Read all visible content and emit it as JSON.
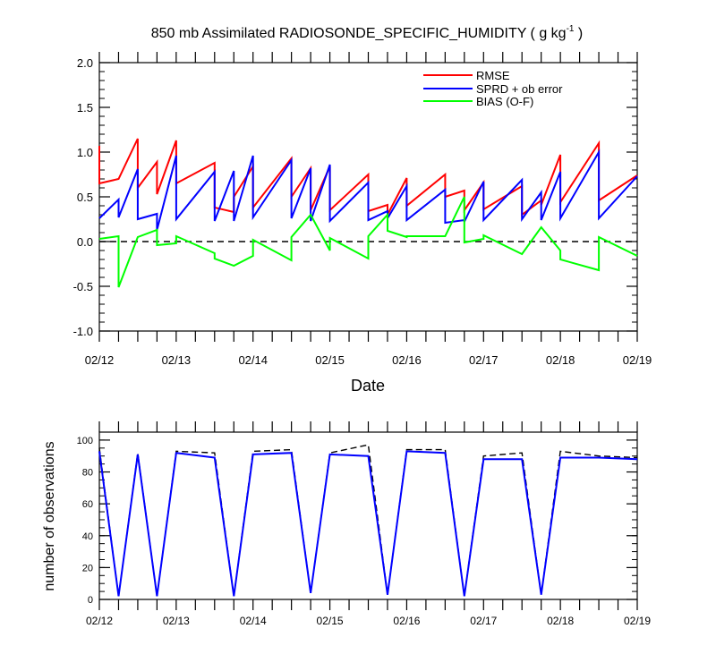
{
  "title_main": "850 mb Assimilated RADIOSONDE_SPECIFIC_HUMIDITY ( g kg",
  "title_sup": "-1",
  "title_close": " )",
  "x_ticks": [
    "02/12",
    "02/13",
    "02/14",
    "02/15",
    "02/16",
    "02/17",
    "02/18",
    "02/19"
  ],
  "colors": {
    "rmse": "#ff0000",
    "sprd": "#0000ff",
    "bias": "#00ff00",
    "obs_possible": "#000000",
    "obs_used": "#0000ff"
  },
  "chart_data": [
    {
      "type": "line",
      "title": "850 mb Assimilated RADIOSONDE_SPECIFIC_HUMIDITY ( g kg-1 )",
      "xlabel": "Date",
      "ylabel": "",
      "xlim": [
        0,
        7
      ],
      "ylim": [
        -1.0,
        2.0
      ],
      "y_ticks": [
        "-1.0",
        "-0.5",
        "0.0",
        "0.5",
        "1.0",
        "1.5",
        "2.0"
      ],
      "x_ticks": [
        "02/12",
        "02/13",
        "02/14",
        "02/15",
        "02/16",
        "02/17",
        "02/18",
        "02/19"
      ],
      "zero_line": "dashed",
      "legend_position": "top-right",
      "series": [
        {
          "name": "RMSE",
          "color": "#ff0000",
          "x": [
            0.0,
            0.0,
            0.25,
            0.5,
            0.5,
            0.75,
            0.75,
            1.0,
            1.0,
            1.5,
            1.5,
            1.75,
            1.75,
            2.0,
            2.0,
            2.5,
            2.5,
            2.75,
            2.75,
            3.0,
            3.0,
            3.5,
            3.5,
            3.75,
            3.75,
            4.0,
            4.0,
            4.5,
            4.5,
            4.75,
            4.75,
            5.0,
            5.0,
            5.5,
            5.5,
            5.75,
            5.75,
            6.0,
            6.0,
            6.5,
            6.5,
            7.0
          ],
          "values": [
            1.07,
            0.65,
            0.7,
            1.15,
            0.6,
            0.89,
            0.53,
            1.13,
            0.65,
            0.88,
            0.38,
            0.33,
            0.5,
            0.84,
            0.38,
            0.93,
            0.5,
            0.82,
            0.35,
            0.84,
            0.35,
            0.75,
            0.34,
            0.41,
            0.3,
            0.71,
            0.4,
            0.75,
            0.5,
            0.57,
            0.35,
            0.66,
            0.36,
            0.62,
            0.3,
            0.46,
            0.41,
            0.97,
            0.44,
            1.1,
            0.46,
            0.74
          ]
        },
        {
          "name": "SPRD + ob error",
          "color": "#0000ff",
          "x": [
            0.0,
            0.25,
            0.25,
            0.5,
            0.5,
            0.75,
            0.75,
            1.0,
            1.0,
            1.5,
            1.5,
            1.75,
            1.75,
            2.0,
            2.0,
            2.5,
            2.5,
            2.75,
            2.75,
            3.0,
            3.0,
            3.5,
            3.5,
            3.75,
            3.75,
            4.0,
            4.0,
            4.5,
            4.5,
            4.75,
            4.75,
            5.0,
            5.0,
            5.5,
            5.5,
            5.75,
            5.75,
            6.0,
            6.0,
            6.5,
            6.5,
            7.0
          ],
          "values": [
            0.26,
            0.47,
            0.27,
            0.81,
            0.25,
            0.31,
            0.13,
            0.96,
            0.25,
            0.78,
            0.23,
            0.79,
            0.23,
            0.96,
            0.27,
            0.91,
            0.26,
            0.82,
            0.23,
            0.86,
            0.23,
            0.66,
            0.24,
            0.34,
            0.26,
            0.62,
            0.24,
            0.58,
            0.21,
            0.24,
            0.22,
            0.67,
            0.24,
            0.69,
            0.25,
            0.55,
            0.24,
            0.78,
            0.26,
            1.0,
            0.26,
            0.73
          ]
        },
        {
          "name": "BIAS (O-F)",
          "color": "#00ff00",
          "x": [
            0.0,
            0.25,
            0.25,
            0.5,
            0.75,
            0.75,
            1.0,
            1.0,
            1.5,
            1.5,
            1.75,
            2.0,
            2.0,
            2.5,
            2.5,
            2.75,
            3.0,
            3.0,
            3.5,
            3.5,
            3.75,
            3.75,
            4.0,
            4.0,
            4.5,
            4.75,
            4.75,
            5.0,
            5.0,
            5.5,
            5.75,
            6.0,
            6.0,
            6.5,
            6.5,
            7.0
          ],
          "values": [
            0.03,
            0.06,
            -0.51,
            0.05,
            0.13,
            -0.04,
            -0.02,
            0.06,
            -0.13,
            -0.19,
            -0.27,
            -0.16,
            0.02,
            -0.21,
            0.05,
            0.3,
            -0.1,
            0.04,
            -0.19,
            0.06,
            0.3,
            0.12,
            0.05,
            0.06,
            0.06,
            0.5,
            -0.01,
            0.03,
            0.07,
            -0.14,
            0.16,
            -0.1,
            -0.2,
            -0.32,
            0.05,
            -0.16
          ]
        }
      ]
    },
    {
      "type": "line",
      "xlabel": "",
      "ylabel": "number of observations",
      "xlim": [
        0,
        7
      ],
      "ylim": [
        0,
        105
      ],
      "y_ticks": [
        "0",
        "20",
        "40",
        "60",
        "80",
        "100"
      ],
      "x_ticks": [
        "02/12",
        "02/13",
        "02/14",
        "02/15",
        "02/16",
        "02/17",
        "02/18",
        "02/19"
      ],
      "series": [
        {
          "name": "possible",
          "style": "dashed",
          "color": "#000000",
          "x": [
            0.0,
            0.25,
            0.5,
            0.75,
            1.0,
            1.5,
            1.75,
            2.0,
            2.5,
            2.75,
            3.0,
            3.5,
            3.75,
            4.0,
            4.5,
            4.75,
            5.0,
            5.5,
            5.75,
            6.0,
            6.5,
            7.0
          ],
          "values": [
            95,
            2,
            92,
            2,
            93,
            92,
            2,
            93,
            94,
            4,
            92,
            97,
            3,
            94,
            94,
            2,
            90,
            92,
            3,
            93,
            90,
            89
          ]
        },
        {
          "name": "used",
          "style": "solid",
          "color": "#0000ff",
          "x": [
            0.0,
            0.25,
            0.5,
            0.75,
            1.0,
            1.5,
            1.75,
            2.0,
            2.5,
            2.75,
            3.0,
            3.5,
            3.75,
            4.0,
            4.5,
            4.75,
            5.0,
            5.5,
            5.75,
            6.0,
            6.5,
            7.0
          ],
          "values": [
            93,
            2,
            91,
            2,
            92,
            89,
            2,
            91,
            92,
            4,
            91,
            90,
            3,
            93,
            92,
            2,
            88,
            88,
            3,
            89,
            89,
            88
          ]
        }
      ]
    }
  ]
}
